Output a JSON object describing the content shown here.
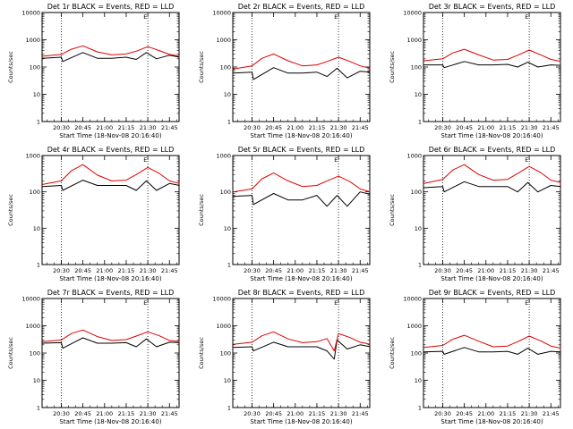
{
  "window": {
    "width": 640,
    "height": 480
  },
  "colors": {
    "events": "#000000",
    "lld": "#e00000",
    "marker": "#000000"
  },
  "shared": {
    "xlabel": "Start Time (18-Nov-08 20:16:40)",
    "ylabel": "Counts/sec",
    "xticks": [
      "20:30",
      "20:45",
      "21:00",
      "21:15",
      "21:30",
      "21:45"
    ],
    "yticks": [
      "1",
      "10",
      "100",
      "1000",
      "10000"
    ],
    "flag": "E"
  },
  "chart_data": [
    {
      "type": "line",
      "title": "Det 1r BLACK = Events, RED = LLD",
      "xlabel": "Start Time (18-Nov-08 20:16:40)",
      "ylabel": "Counts/sec",
      "yscale": "log",
      "ylim": [
        1,
        10000
      ],
      "xlim_minutes": [
        0,
        95
      ],
      "grid": false,
      "dotted_vlines": [
        "20:30",
        "21:30"
      ],
      "series": [
        {
          "name": "Events",
          "color": "#000000",
          "x": [
            "20:17",
            "20:30",
            "20:31",
            "20:45",
            "20:55",
            "21:05",
            "21:15",
            "21:22",
            "21:29",
            "21:36",
            "21:45",
            "21:52"
          ],
          "y": [
            210,
            230,
            160,
            340,
            210,
            210,
            230,
            190,
            340,
            200,
            270,
            230
          ]
        },
        {
          "name": "LLD",
          "color": "#e00000",
          "x": [
            "20:17",
            "20:30",
            "20:37",
            "20:45",
            "20:55",
            "21:05",
            "21:15",
            "21:22",
            "21:30",
            "21:38",
            "21:45",
            "21:52"
          ],
          "y": [
            250,
            290,
            450,
            600,
            360,
            280,
            300,
            380,
            560,
            400,
            290,
            250
          ]
        }
      ]
    },
    {
      "type": "line",
      "title": "Det 2r BLACK = Events, RED = LLD",
      "xlabel": "Start Time (18-Nov-08 20:16:40)",
      "ylabel": "Counts/sec",
      "yscale": "log",
      "ylim": [
        1,
        10000
      ],
      "xlim_minutes": [
        0,
        95
      ],
      "grid": false,
      "dotted_vlines": [
        "20:30",
        "21:30"
      ],
      "series": [
        {
          "name": "Events",
          "color": "#000000",
          "x": [
            "20:17",
            "20:30",
            "20:31",
            "20:45",
            "20:55",
            "21:05",
            "21:15",
            "21:22",
            "21:29",
            "21:36",
            "21:45",
            "21:52"
          ],
          "y": [
            60,
            65,
            35,
            95,
            60,
            60,
            65,
            45,
            90,
            40,
            70,
            65
          ]
        },
        {
          "name": "LLD",
          "color": "#e00000",
          "x": [
            "20:17",
            "20:30",
            "20:37",
            "20:45",
            "20:55",
            "21:05",
            "21:15",
            "21:22",
            "21:30",
            "21:38",
            "21:45",
            "21:52"
          ],
          "y": [
            85,
            110,
            210,
            300,
            170,
            110,
            120,
            160,
            230,
            160,
            110,
            90
          ]
        }
      ]
    },
    {
      "type": "line",
      "title": "Det 3r BLACK = Events, RED = LLD",
      "xlabel": "Start Time (18-Nov-08 20:16:40)",
      "ylabel": "Counts/sec",
      "yscale": "log",
      "ylim": [
        1,
        10000
      ],
      "xlim_minutes": [
        0,
        95
      ],
      "grid": false,
      "dotted_vlines": [
        "20:30",
        "21:30"
      ],
      "series": [
        {
          "name": "Events",
          "color": "#000000",
          "x": [
            "20:17",
            "20:30",
            "20:31",
            "20:45",
            "20:55",
            "21:05",
            "21:15",
            "21:22",
            "21:29",
            "21:36",
            "21:45",
            "21:52"
          ],
          "y": [
            120,
            120,
            95,
            160,
            120,
            120,
            125,
            100,
            150,
            100,
            120,
            115
          ]
        },
        {
          "name": "LLD",
          "color": "#e00000",
          "x": [
            "20:17",
            "20:30",
            "20:37",
            "20:45",
            "20:55",
            "21:05",
            "21:15",
            "21:22",
            "21:30",
            "21:38",
            "21:45",
            "21:52"
          ],
          "y": [
            170,
            200,
            330,
            450,
            280,
            180,
            190,
            270,
            420,
            280,
            190,
            160
          ]
        }
      ]
    },
    {
      "type": "line",
      "title": "Det 4r BLACK = Events, RED = LLD",
      "xlabel": "Start Time (18-Nov-08 20:16:40)",
      "ylabel": "Counts/sec",
      "yscale": "log",
      "ylim": [
        1,
        1000
      ],
      "xlim_minutes": [
        0,
        95
      ],
      "grid": false,
      "dotted_vlines": [
        "20:30",
        "21:30"
      ],
      "series": [
        {
          "name": "Events",
          "color": "#000000",
          "x": [
            "20:17",
            "20:30",
            "20:31",
            "20:45",
            "20:55",
            "21:05",
            "21:15",
            "21:22",
            "21:29",
            "21:36",
            "21:45",
            "21:52"
          ],
          "y": [
            140,
            150,
            110,
            210,
            150,
            150,
            150,
            110,
            200,
            110,
            170,
            150
          ]
        },
        {
          "name": "LLD",
          "color": "#e00000",
          "x": [
            "20:17",
            "20:30",
            "20:37",
            "20:45",
            "20:55",
            "21:05",
            "21:15",
            "21:22",
            "21:30",
            "21:38",
            "21:45",
            "21:52"
          ],
          "y": [
            160,
            200,
            380,
            560,
            290,
            200,
            210,
            300,
            470,
            320,
            200,
            170
          ]
        }
      ]
    },
    {
      "type": "line",
      "title": "Det 5r BLACK = Events, RED = LLD",
      "xlabel": "Start Time (18-Nov-08 20:16:40)",
      "ylabel": "Counts/sec",
      "yscale": "log",
      "ylim": [
        1,
        1000
      ],
      "xlim_minutes": [
        0,
        95
      ],
      "grid": false,
      "dotted_vlines": [
        "20:30",
        "21:30"
      ],
      "series": [
        {
          "name": "Events",
          "color": "#000000",
          "x": [
            "20:17",
            "20:30",
            "20:31",
            "20:45",
            "20:55",
            "21:05",
            "21:15",
            "21:22",
            "21:29",
            "21:36",
            "21:45",
            "21:52"
          ],
          "y": [
            75,
            80,
            45,
            90,
            60,
            60,
            80,
            40,
            80,
            40,
            100,
            85
          ]
        },
        {
          "name": "LLD",
          "color": "#e00000",
          "x": [
            "20:17",
            "20:30",
            "20:37",
            "20:45",
            "20:55",
            "21:05",
            "21:15",
            "21:22",
            "21:30",
            "21:38",
            "21:45",
            "21:52"
          ],
          "y": [
            100,
            120,
            230,
            330,
            200,
            140,
            150,
            200,
            270,
            190,
            120,
            100
          ]
        }
      ]
    },
    {
      "type": "line",
      "title": "Det 6r BLACK = Events, RED = LLD",
      "xlabel": "Start Time (18-Nov-08 20:16:40)",
      "ylabel": "Counts/sec",
      "yscale": "log",
      "ylim": [
        1,
        1000
      ],
      "xlim_minutes": [
        0,
        95
      ],
      "grid": false,
      "dotted_vlines": [
        "20:30",
        "21:30"
      ],
      "series": [
        {
          "name": "Events",
          "color": "#000000",
          "x": [
            "20:17",
            "20:30",
            "20:31",
            "20:45",
            "20:55",
            "21:05",
            "21:15",
            "21:22",
            "21:29",
            "21:36",
            "21:45",
            "21:52"
          ],
          "y": [
            130,
            140,
            100,
            190,
            140,
            140,
            140,
            100,
            180,
            100,
            150,
            140
          ]
        },
        {
          "name": "LLD",
          "color": "#e00000",
          "x": [
            "20:17",
            "20:30",
            "20:37",
            "20:45",
            "20:55",
            "21:05",
            "21:15",
            "21:22",
            "21:30",
            "21:38",
            "21:45",
            "21:52"
          ],
          "y": [
            170,
            220,
            400,
            560,
            300,
            210,
            220,
            320,
            500,
            340,
            210,
            180
          ]
        }
      ]
    },
    {
      "type": "line",
      "title": "Det 7r BLACK = Events, RED = LLD",
      "xlabel": "Start Time (18-Nov-08 20:16:40)",
      "ylabel": "Counts/sec",
      "yscale": "log",
      "ylim": [
        1,
        10000
      ],
      "xlim_minutes": [
        0,
        95
      ],
      "grid": false,
      "dotted_vlines": [
        "20:30",
        "21:30"
      ],
      "series": [
        {
          "name": "Events",
          "color": "#000000",
          "x": [
            "20:17",
            "20:30",
            "20:31",
            "20:45",
            "20:55",
            "21:05",
            "21:15",
            "21:22",
            "21:29",
            "21:36",
            "21:45",
            "21:52"
          ],
          "y": [
            230,
            240,
            150,
            360,
            230,
            230,
            240,
            170,
            330,
            170,
            250,
            240
          ]
        },
        {
          "name": "LLD",
          "color": "#e00000",
          "x": [
            "20:17",
            "20:30",
            "20:37",
            "20:45",
            "20:55",
            "21:05",
            "21:15",
            "21:22",
            "21:30",
            "21:38",
            "21:45",
            "21:52"
          ],
          "y": [
            260,
            300,
            520,
            700,
            400,
            290,
            310,
            420,
            600,
            430,
            290,
            260
          ]
        }
      ]
    },
    {
      "type": "line",
      "title": "Det 8r BLACK = Events, RED = LLD",
      "xlabel": "Start Time (18-Nov-08 20:16:40)",
      "ylabel": "Counts/sec",
      "yscale": "log",
      "ylim": [
        1,
        10000
      ],
      "xlim_minutes": [
        0,
        95
      ],
      "grid": false,
      "dotted_vlines": [
        "20:30",
        "21:30"
      ],
      "series": [
        {
          "name": "Events",
          "color": "#000000",
          "x": [
            "20:17",
            "20:30",
            "20:31",
            "20:45",
            "20:55",
            "21:05",
            "21:15",
            "21:22",
            "21:27",
            "21:29",
            "21:36",
            "21:45",
            "21:52"
          ],
          "y": [
            160,
            170,
            120,
            250,
            170,
            170,
            170,
            120,
            60,
            300,
            140,
            200,
            170
          ]
        },
        {
          "name": "LLD",
          "color": "#e00000",
          "x": [
            "20:17",
            "20:30",
            "20:37",
            "20:45",
            "20:55",
            "21:05",
            "21:15",
            "21:22",
            "21:27",
            "21:30",
            "21:38",
            "21:45",
            "21:52"
          ],
          "y": [
            210,
            250,
            430,
            600,
            330,
            240,
            260,
            340,
            120,
            520,
            370,
            250,
            210
          ]
        }
      ]
    },
    {
      "type": "line",
      "title": "Det 9r BLACK = Events, RED = LLD",
      "xlabel": "Start Time (18-Nov-08 20:16:40)",
      "ylabel": "Counts/sec",
      "yscale": "log",
      "ylim": [
        1,
        10000
      ],
      "xlim_minutes": [
        0,
        95
      ],
      "grid": false,
      "dotted_vlines": [
        "20:30",
        "21:30"
      ],
      "series": [
        {
          "name": "Events",
          "color": "#000000",
          "x": [
            "20:17",
            "20:30",
            "20:31",
            "20:45",
            "20:55",
            "21:05",
            "21:15",
            "21:22",
            "21:29",
            "21:36",
            "21:45",
            "21:52"
          ],
          "y": [
            110,
            115,
            90,
            160,
            110,
            110,
            115,
            90,
            150,
            90,
            115,
            110
          ]
        },
        {
          "name": "LLD",
          "color": "#e00000",
          "x": [
            "20:17",
            "20:30",
            "20:37",
            "20:45",
            "20:55",
            "21:05",
            "21:15",
            "21:22",
            "21:30",
            "21:38",
            "21:45",
            "21:52"
          ],
          "y": [
            160,
            190,
            320,
            450,
            270,
            170,
            180,
            260,
            420,
            280,
            180,
            150
          ]
        }
      ]
    }
  ]
}
